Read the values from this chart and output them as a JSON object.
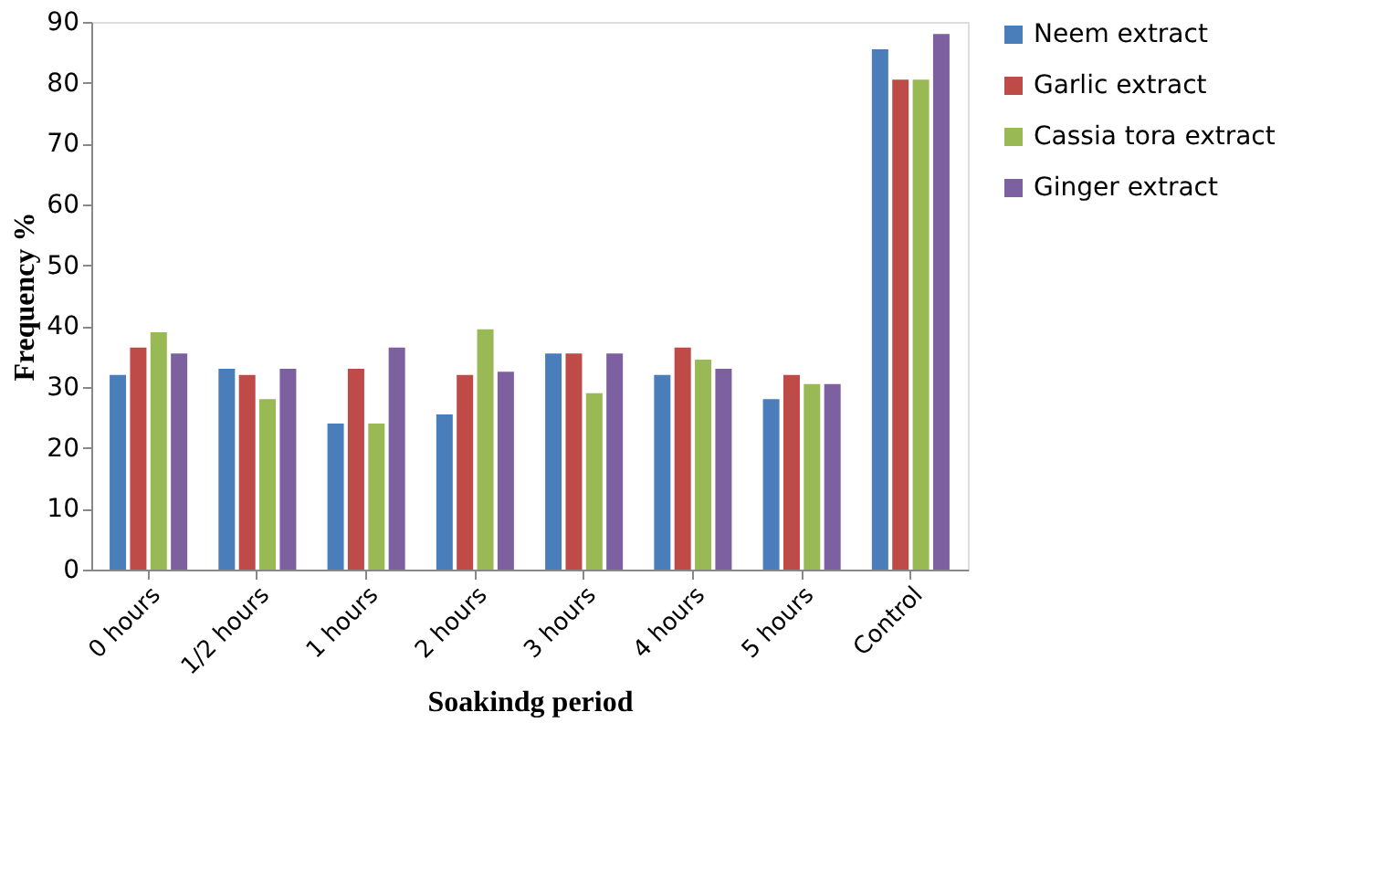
{
  "chart_data": {
    "type": "bar",
    "xlabel": "Soakindg period",
    "ylabel": "Frequency %",
    "categories": [
      "0 hours",
      "1/2 hours",
      "1 hours",
      "2 hours",
      "3 hours",
      "4 hours",
      "5 hours",
      "Control"
    ],
    "series": [
      {
        "name": "Neem extract",
        "color": "#4a7ebb",
        "values": [
          32,
          33,
          24,
          25.5,
          35.5,
          32,
          28,
          85.5
        ]
      },
      {
        "name": "Garlic extract",
        "color": "#be4b48",
        "values": [
          36.5,
          32,
          33,
          32,
          35.5,
          36.5,
          32,
          80.5
        ]
      },
      {
        "name": "Cassia tora extract",
        "color": "#98b954",
        "values": [
          39,
          28,
          24,
          39.5,
          29,
          34.5,
          30.5,
          80.5
        ]
      },
      {
        "name": "Ginger extract",
        "color": "#7d60a0",
        "values": [
          35.5,
          33,
          36.5,
          32.5,
          35.5,
          33,
          30.5,
          88
        ]
      }
    ],
    "ylim": [
      0,
      90
    ],
    "yticks": [
      0,
      10,
      20,
      30,
      40,
      50,
      60,
      70,
      80,
      90
    ],
    "grid": false,
    "legend": "right"
  }
}
